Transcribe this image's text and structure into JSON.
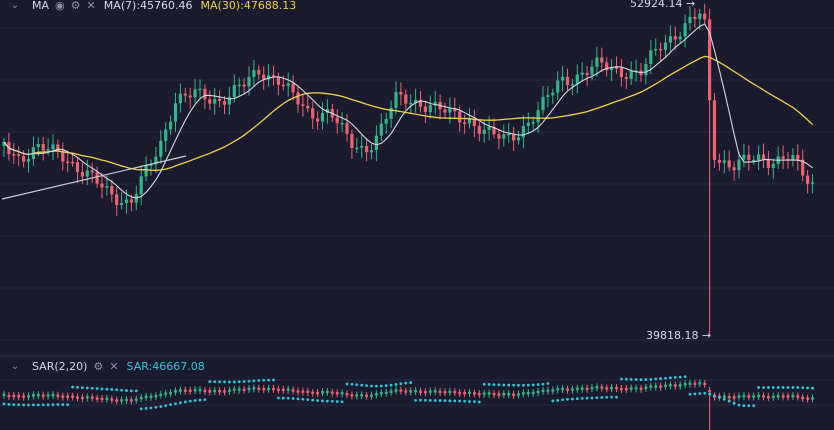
{
  "legend_main": {
    "indicator": "MA",
    "ma7_label": "MA(7):45760.46",
    "ma30_label": "MA(30):47688.13",
    "icons": [
      "chevron-down-icon",
      "eye-icon",
      "gear-icon",
      "close-icon"
    ]
  },
  "legend_sub": {
    "indicator": "SAR(2,20)",
    "sar_label": "SAR:46667.08",
    "icons": [
      "chevron-down-icon",
      "gear-icon",
      "close-icon"
    ]
  },
  "annotations": {
    "high": "52924.14 →",
    "low": "39818.18 →"
  },
  "colors": {
    "background": "#1a1b2e",
    "grid": "#262941",
    "up": "#35b58b",
    "down": "#f0626f",
    "ma7": "#d6d8e3",
    "ma30": "#f2d14a",
    "sar": "#2ec8d6",
    "trendline": "#c9ccd8",
    "separator": "#2c2f48"
  },
  "chart_data": [
    {
      "type": "candlestick",
      "title": "",
      "xlabel": "",
      "ylabel": "",
      "candles_count": 166,
      "ylim": [
        39000,
        54000
      ],
      "high_marker": 52924.14,
      "low_marker": 39818.18,
      "series": [
        {
          "name": "MA(7)",
          "last_value": 45760.46
        },
        {
          "name": "MA(30)",
          "last_value": 47688.13
        }
      ],
      "grid": true
    },
    {
      "type": "scatter",
      "title": "",
      "series": [
        {
          "name": "SAR(2,20)",
          "last_value": 46667.08
        }
      ],
      "grid": true
    }
  ]
}
